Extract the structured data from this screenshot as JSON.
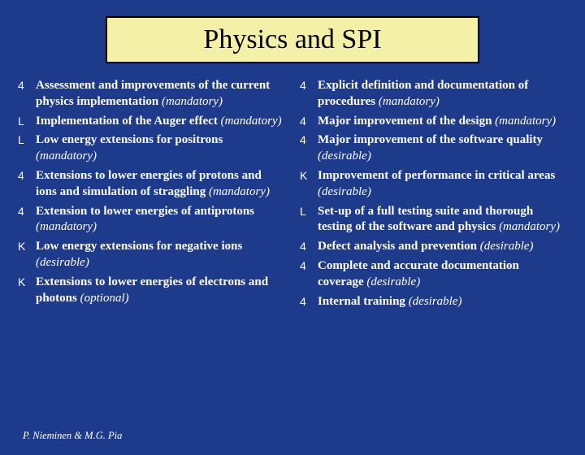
{
  "title": "Physics and SPI",
  "colors": {
    "background": "#1e3a8a",
    "title_bg": "#f5f0a8",
    "title_border": "#000000",
    "title_text": "#000000",
    "body_text": "#ffffff"
  },
  "bullet_glyphs": {
    "square4": "▓",
    "neutral": "☹",
    "smile": "☺"
  },
  "left_column": [
    {
      "bullet": "square4",
      "text": "Assessment and improvements of the current physics implementation",
      "priority": "(mandatory)"
    },
    {
      "bullet": "neutral",
      "text": "Implementation of the Auger effect",
      "priority": "(mandatory)"
    },
    {
      "bullet": "neutral",
      "text": "Low energy extensions for positrons",
      "priority": "(mandatory)"
    },
    {
      "bullet": "square4",
      "text": "Extensions to lower energies of protons and ions and simulation of straggling",
      "priority": "(mandatory)"
    },
    {
      "bullet": "square4",
      "text": "Extension to lower energies of antiprotons",
      "priority": "(mandatory)"
    },
    {
      "bullet": "smile",
      "text": "Low energy extensions for negative ions",
      "priority": "(desirable)"
    },
    {
      "bullet": "smile",
      "text": "Extensions to lower energies of electrons and photons",
      "priority": "(optional)"
    }
  ],
  "right_column": [
    {
      "bullet": "square4",
      "text": "Explicit definition and documentation of procedures",
      "priority": "(mandatory)"
    },
    {
      "bullet": "square4",
      "text": "Major improvement of the design",
      "priority": "(mandatory)"
    },
    {
      "bullet": "square4",
      "text": "Major improvement of the software quality",
      "priority": "(desirable)"
    },
    {
      "bullet": "smile",
      "text": "Improvement of performance in critical areas",
      "priority": "(desirable)"
    },
    {
      "bullet": "neutral",
      "text": "Set-up of a full testing suite and thorough testing of the software and physics",
      "priority": "(mandatory)"
    },
    {
      "bullet": "square4",
      "text": "Defect analysis and prevention",
      "priority": "(desirable)"
    },
    {
      "bullet": "square4",
      "text": "Complete and accurate documentation coverage",
      "priority": "(desirable)"
    },
    {
      "bullet": "square4",
      "text": "Internal training",
      "priority": "(desirable)"
    }
  ],
  "footer": "P. Nieminen & M.G. Pia"
}
